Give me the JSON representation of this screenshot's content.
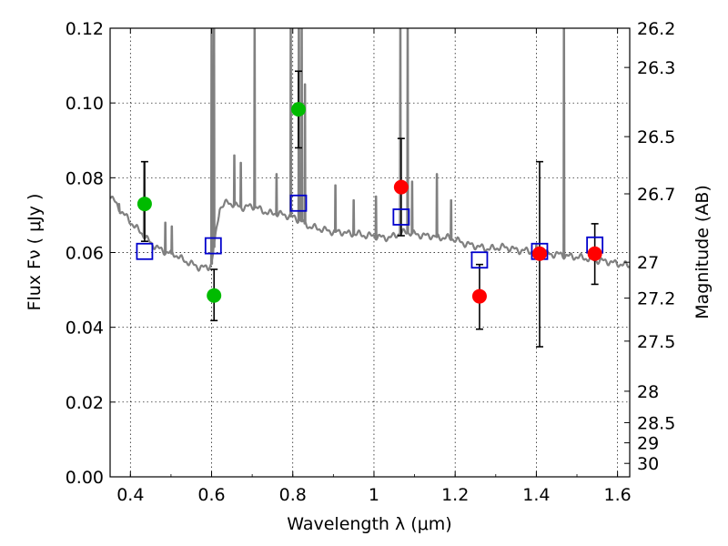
{
  "chart_data": {
    "type": "scatter",
    "xlabel": "Wavelength  λ (μm)",
    "ylabel": "Flux  Fν  ( μJy )",
    "ylabel_right": "Magnitude (AB)",
    "xlim": [
      0.35,
      1.63
    ],
    "ylim": [
      0.0,
      0.12
    ],
    "grid": true,
    "x_ticks": [
      0.4,
      0.6,
      0.8,
      1.0,
      1.2,
      1.4,
      1.6
    ],
    "x_tick_labels": [
      "0.4",
      "0.6",
      "0.8",
      "1",
      "1.2",
      "1.4",
      "1.6"
    ],
    "y_ticks": [
      0.0,
      0.02,
      0.04,
      0.06,
      0.08,
      0.1,
      0.12
    ],
    "y_tick_labels": [
      "0.00",
      "0.02",
      "0.04",
      "0.06",
      "0.08",
      "0.10",
      "0.12"
    ],
    "right_ticks": [
      {
        "label": "26.2",
        "flux": 0.12
      },
      {
        "label": "26.3",
        "flux": 0.1095
      },
      {
        "label": "26.5",
        "flux": 0.091
      },
      {
        "label": "26.7",
        "flux": 0.0757
      },
      {
        "label": "27",
        "flux": 0.0574
      },
      {
        "label": "27.2",
        "flux": 0.0478
      },
      {
        "label": "27.5",
        "flux": 0.0363
      },
      {
        "label": "28",
        "flux": 0.0229
      },
      {
        "label": "28.5",
        "flux": 0.0145
      },
      {
        "label": "29",
        "flux": 0.0091
      },
      {
        "label": "30",
        "flux": 0.0036
      }
    ],
    "series": [
      {
        "role": "photometry-green",
        "color": "#00bb00",
        "marker": "circle",
        "points": [
          {
            "x": 0.435,
            "y": 0.073,
            "err_low": 0.063,
            "err_high": 0.0843
          },
          {
            "x": 0.606,
            "y": 0.0485,
            "err_low": 0.0418,
            "err_high": 0.0555
          },
          {
            "x": 0.814,
            "y": 0.0983,
            "err_low": 0.088,
            "err_high": 0.1085
          }
        ]
      },
      {
        "role": "photometry-red",
        "color": "#ff0000",
        "marker": "circle",
        "points": [
          {
            "x": 1.067,
            "y": 0.0775,
            "err_low": 0.0645,
            "err_high": 0.0905
          },
          {
            "x": 1.26,
            "y": 0.0483,
            "err_low": 0.0395,
            "err_high": 0.0568
          },
          {
            "x": 1.408,
            "y": 0.0597,
            "err_low": 0.0348,
            "err_high": 0.0843
          },
          {
            "x": 1.544,
            "y": 0.0597,
            "err_low": 0.0515,
            "err_high": 0.0677
          }
        ]
      },
      {
        "role": "model-synthetic",
        "color": "#0000cc",
        "marker": "open-square",
        "points": [
          {
            "x": 0.435,
            "y": 0.0603
          },
          {
            "x": 0.604,
            "y": 0.0618
          },
          {
            "x": 0.814,
            "y": 0.0732
          },
          {
            "x": 1.067,
            "y": 0.0695
          },
          {
            "x": 1.26,
            "y": 0.058
          },
          {
            "x": 1.408,
            "y": 0.0603
          },
          {
            "x": 1.544,
            "y": 0.062
          }
        ]
      }
    ],
    "spectrum": {
      "color": "#808080",
      "continuum": [
        [
          0.35,
          0.0755
        ],
        [
          0.37,
          0.072
        ],
        [
          0.39,
          0.0695
        ],
        [
          0.41,
          0.067
        ],
        [
          0.43,
          0.065
        ],
        [
          0.45,
          0.0625
        ],
        [
          0.47,
          0.061
        ],
        [
          0.49,
          0.06
        ],
        [
          0.51,
          0.0595
        ],
        [
          0.53,
          0.058
        ],
        [
          0.55,
          0.057
        ],
        [
          0.57,
          0.056
        ],
        [
          0.59,
          0.056
        ],
        [
          0.6,
          0.057
        ],
        [
          0.62,
          0.072
        ],
        [
          0.64,
          0.0735
        ],
        [
          0.66,
          0.0725
        ],
        [
          0.68,
          0.072
        ],
        [
          0.7,
          0.0725
        ],
        [
          0.72,
          0.0715
        ],
        [
          0.74,
          0.0705
        ],
        [
          0.76,
          0.0705
        ],
        [
          0.78,
          0.07
        ],
        [
          0.8,
          0.0695
        ],
        [
          0.82,
          0.0685
        ],
        [
          0.84,
          0.067
        ],
        [
          0.86,
          0.0665
        ],
        [
          0.88,
          0.066
        ],
        [
          0.9,
          0.0655
        ],
        [
          0.92,
          0.0655
        ],
        [
          0.94,
          0.065
        ],
        [
          0.96,
          0.065
        ],
        [
          0.98,
          0.0645
        ],
        [
          1.0,
          0.0645
        ],
        [
          1.02,
          0.064
        ],
        [
          1.04,
          0.064
        ],
        [
          1.06,
          0.065
        ],
        [
          1.08,
          0.0655
        ],
        [
          1.1,
          0.065
        ],
        [
          1.12,
          0.0645
        ],
        [
          1.14,
          0.0645
        ],
        [
          1.16,
          0.064
        ],
        [
          1.18,
          0.064
        ],
        [
          1.2,
          0.0635
        ],
        [
          1.22,
          0.0625
        ],
        [
          1.24,
          0.062
        ],
        [
          1.26,
          0.0615
        ],
        [
          1.28,
          0.061
        ],
        [
          1.3,
          0.0612
        ],
        [
          1.32,
          0.0615
        ],
        [
          1.34,
          0.061
        ],
        [
          1.36,
          0.0605
        ],
        [
          1.38,
          0.0605
        ],
        [
          1.4,
          0.06
        ],
        [
          1.42,
          0.0598
        ],
        [
          1.44,
          0.0595
        ],
        [
          1.46,
          0.0595
        ],
        [
          1.48,
          0.059
        ],
        [
          1.5,
          0.0588
        ],
        [
          1.52,
          0.0585
        ],
        [
          1.54,
          0.058
        ],
        [
          1.56,
          0.0578
        ],
        [
          1.58,
          0.0575
        ],
        [
          1.6,
          0.057
        ],
        [
          1.63,
          0.0565
        ]
      ],
      "lines": [
        {
          "x": 0.372,
          "peak": 0.073
        },
        {
          "x": 0.434,
          "peak": 0.084
        },
        {
          "x": 0.486,
          "peak": 0.068
        },
        {
          "x": 0.502,
          "peak": 0.067
        },
        {
          "x": 0.6,
          "peak": 0.12
        },
        {
          "x": 0.606,
          "peak": 0.12
        },
        {
          "x": 0.656,
          "peak": 0.086
        },
        {
          "x": 0.672,
          "peak": 0.084
        },
        {
          "x": 0.706,
          "peak": 0.12
        },
        {
          "x": 0.76,
          "peak": 0.081
        },
        {
          "x": 0.795,
          "peak": 0.12
        },
        {
          "x": 0.815,
          "peak": 0.12
        },
        {
          "x": 0.822,
          "peak": 0.12
        },
        {
          "x": 0.83,
          "peak": 0.105
        },
        {
          "x": 0.905,
          "peak": 0.078
        },
        {
          "x": 0.95,
          "peak": 0.074
        },
        {
          "x": 1.005,
          "peak": 0.075
        },
        {
          "x": 1.065,
          "peak": 0.12
        },
        {
          "x": 1.083,
          "peak": 0.12
        },
        {
          "x": 1.094,
          "peak": 0.079
        },
        {
          "x": 1.155,
          "peak": 0.081
        },
        {
          "x": 1.19,
          "peak": 0.074
        },
        {
          "x": 1.4,
          "peak": 0.062
        },
        {
          "x": 1.468,
          "peak": 0.12
        }
      ]
    }
  }
}
